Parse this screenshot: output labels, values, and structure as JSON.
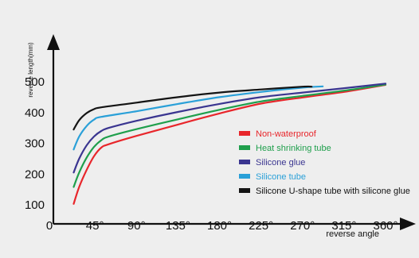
{
  "chart_data": {
    "type": "line",
    "title": "",
    "xlabel": "reverse angle",
    "ylabel": "reverse length(mm)",
    "xlim": [
      0,
      360
    ],
    "ylim": [
      50,
      560
    ],
    "x_ticks": [
      0,
      45,
      90,
      135,
      180,
      225,
      270,
      315,
      360
    ],
    "x_tick_labels": [
      "0",
      "45°",
      "90°",
      "135°",
      "180°",
      "225°",
      "270°",
      "315°",
      "360°"
    ],
    "y_ticks": [
      100,
      200,
      300,
      400,
      500
    ],
    "y_tick_labels": [
      "100",
      "200",
      "300",
      "400",
      "500"
    ],
    "grid": false,
    "legend_position": "center-right",
    "series": [
      {
        "name": "Non-waterproof",
        "color": "#e8262b",
        "x": [
          22,
          28,
          36,
          44,
          52,
          60,
          90,
          135,
          180,
          225,
          270,
          315,
          360
        ],
        "y": [
          103,
          158,
          213,
          258,
          286,
          297,
          324,
          361,
          397,
          429,
          449,
          467,
          490
        ]
      },
      {
        "name": "Heat shrinking tube",
        "color": "#1f9f4c",
        "x": [
          22,
          28,
          36,
          44,
          52,
          60,
          90,
          135,
          180,
          225,
          270,
          315,
          360
        ],
        "y": [
          158,
          205,
          253,
          288,
          310,
          322,
          346,
          378,
          409,
          436,
          454,
          471,
          491
        ]
      },
      {
        "name": "Silicone glue",
        "color": "#3a3590",
        "x": [
          22,
          28,
          36,
          44,
          52,
          60,
          90,
          135,
          180,
          225,
          270,
          315,
          360
        ],
        "y": [
          205,
          250,
          293,
          322,
          340,
          350,
          373,
          402,
          428,
          450,
          465,
          479,
          494
        ]
      },
      {
        "name": "Silicone tube",
        "color": "#2aa0d8",
        "x": [
          22,
          28,
          36,
          44,
          52,
          90,
          135,
          180,
          225,
          270,
          292
        ],
        "y": [
          280,
          322,
          356,
          377,
          386,
          404,
          428,
          450,
          467,
          481,
          485
        ]
      },
      {
        "name": "Silicone U-shape tube with silicone glue",
        "color": "#141414",
        "x": [
          22,
          28,
          36,
          44,
          52,
          90,
          135,
          180,
          225,
          270,
          280
        ],
        "y": [
          345,
          375,
          398,
          411,
          417,
          432,
          450,
          465,
          475,
          484,
          484
        ]
      }
    ]
  }
}
